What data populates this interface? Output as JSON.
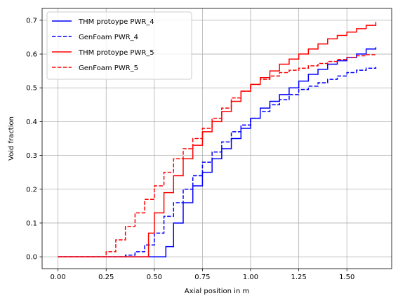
{
  "chart_data": {
    "type": "line",
    "title": "",
    "xlabel": "Axial position in m",
    "ylabel": "Void fraction",
    "xlim": [
      -0.0825,
      1.7325
    ],
    "ylim": [
      -0.035,
      0.735
    ],
    "xticks": [
      0.0,
      0.25,
      0.5,
      0.75,
      1.0,
      1.25,
      1.5
    ],
    "xtick_labels": [
      "0.00",
      "0.25",
      "0.50",
      "0.75",
      "1.00",
      "1.25",
      "1.50"
    ],
    "yticks": [
      0.0,
      0.1,
      0.2,
      0.3,
      0.4,
      0.5,
      0.6,
      0.7
    ],
    "ytick_labels": [
      "0.0",
      "0.1",
      "0.2",
      "0.3",
      "0.4",
      "0.5",
      "0.6",
      "0.7"
    ],
    "grid": true,
    "legend_position": "upper-left",
    "step_style": "steps-post",
    "series": [
      {
        "name": "THM protoype PWR_4",
        "color": "#0000ff",
        "linestyle": "solid",
        "x": [
          0.0,
          0.55,
          0.56,
          0.6,
          0.65,
          0.7,
          0.75,
          0.8,
          0.85,
          0.9,
          0.95,
          1.0,
          1.05,
          1.1,
          1.15,
          1.2,
          1.25,
          1.3,
          1.35,
          1.4,
          1.45,
          1.5,
          1.55,
          1.6,
          1.65
        ],
        "y": [
          0.0,
          0.0,
          0.03,
          0.1,
          0.16,
          0.21,
          0.25,
          0.29,
          0.32,
          0.35,
          0.38,
          0.41,
          0.44,
          0.46,
          0.48,
          0.5,
          0.52,
          0.54,
          0.555,
          0.57,
          0.58,
          0.59,
          0.6,
          0.615,
          0.62
        ]
      },
      {
        "name": "GenFoam PWR_4",
        "color": "#0000ff",
        "linestyle": "dashed",
        "x": [
          0.0,
          0.3,
          0.35,
          0.4,
          0.45,
          0.5,
          0.55,
          0.6,
          0.65,
          0.7,
          0.75,
          0.8,
          0.85,
          0.9,
          0.95,
          1.0,
          1.05,
          1.1,
          1.15,
          1.2,
          1.25,
          1.3,
          1.35,
          1.4,
          1.45,
          1.5,
          1.55,
          1.6,
          1.65
        ],
        "y": [
          0.0,
          0.0,
          0.005,
          0.015,
          0.035,
          0.07,
          0.12,
          0.16,
          0.2,
          0.24,
          0.28,
          0.31,
          0.34,
          0.37,
          0.39,
          0.41,
          0.43,
          0.45,
          0.465,
          0.48,
          0.495,
          0.505,
          0.515,
          0.525,
          0.535,
          0.545,
          0.552,
          0.558,
          0.562
        ]
      },
      {
        "name": "THM protoype PWR_5",
        "color": "#ff0000",
        "linestyle": "solid",
        "x": [
          0.0,
          0.46,
          0.47,
          0.5,
          0.55,
          0.6,
          0.65,
          0.7,
          0.75,
          0.8,
          0.85,
          0.9,
          0.95,
          1.0,
          1.05,
          1.1,
          1.15,
          1.2,
          1.25,
          1.3,
          1.35,
          1.4,
          1.45,
          1.5,
          1.55,
          1.6,
          1.65
        ],
        "y": [
          0.0,
          0.0,
          0.07,
          0.13,
          0.19,
          0.24,
          0.29,
          0.33,
          0.37,
          0.4,
          0.43,
          0.46,
          0.49,
          0.51,
          0.53,
          0.55,
          0.57,
          0.585,
          0.6,
          0.615,
          0.63,
          0.645,
          0.655,
          0.665,
          0.675,
          0.685,
          0.695
        ]
      },
      {
        "name": "GenFoam PWR_5",
        "color": "#ff0000",
        "linestyle": "dashed",
        "x": [
          0.0,
          0.22,
          0.25,
          0.3,
          0.35,
          0.4,
          0.45,
          0.5,
          0.55,
          0.6,
          0.65,
          0.7,
          0.75,
          0.8,
          0.85,
          0.9,
          0.95,
          1.0,
          1.05,
          1.1,
          1.15,
          1.2,
          1.25,
          1.3,
          1.35,
          1.4,
          1.45,
          1.5,
          1.55,
          1.6,
          1.65
        ],
        "y": [
          0.0,
          0.0,
          0.015,
          0.05,
          0.09,
          0.13,
          0.17,
          0.21,
          0.25,
          0.29,
          0.32,
          0.35,
          0.38,
          0.41,
          0.44,
          0.47,
          0.49,
          0.51,
          0.525,
          0.535,
          0.545,
          0.552,
          0.558,
          0.565,
          0.572,
          0.578,
          0.584,
          0.59,
          0.595,
          0.598,
          0.6
        ]
      }
    ]
  }
}
